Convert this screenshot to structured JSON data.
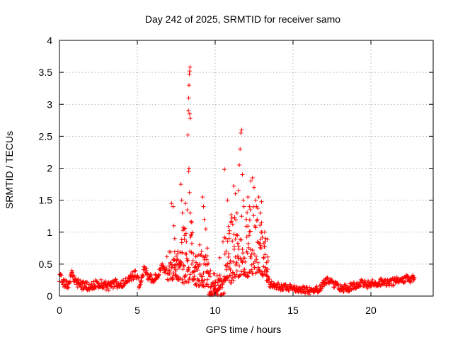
{
  "chart_data": {
    "type": "scatter",
    "title": "Day 242 of 2025, SRMTID for receiver samo",
    "xlabel": "GPS time / hours",
    "ylabel": "SRMTID / TECUs",
    "xlim": [
      0,
      24
    ],
    "ylim": [
      0,
      4
    ],
    "x_ticks": [
      0,
      5,
      10,
      15,
      20
    ],
    "y_ticks": [
      0,
      0.5,
      1,
      1.5,
      2,
      2.5,
      3,
      3.5,
      4
    ],
    "x_tick_labels": [
      "0",
      "5",
      "10",
      "15",
      "20"
    ],
    "y_tick_labels": [
      "0",
      "0.5",
      "1",
      "1.5",
      "2",
      "2.5",
      "3",
      "3.5",
      "4"
    ],
    "grid": true,
    "marker": "+",
    "series": [
      {
        "name": "SRMTID",
        "color": "#ff0000",
        "background_segments": [
          {
            "x": [
              0.0,
              0.3,
              0.6,
              0.8,
              1.0,
              1.3,
              1.6,
              2.0,
              2.4,
              2.8,
              3.2,
              3.6,
              4.0,
              4.3,
              4.6,
              4.9,
              5.1,
              5.3,
              5.5,
              5.7,
              6.0,
              6.3,
              6.6,
              6.9
            ],
            "y": [
              0.3,
              0.2,
              0.18,
              0.4,
              0.22,
              0.18,
              0.16,
              0.15,
              0.2,
              0.18,
              0.15,
              0.2,
              0.17,
              0.25,
              0.3,
              0.35,
              0.2,
              0.3,
              0.45,
              0.3,
              0.25,
              0.35,
              0.45,
              0.4
            ],
            "spread": 0.07
          },
          {
            "x": [
              13.3,
              13.5,
              13.8,
              14.1,
              14.4,
              14.8,
              15.2,
              15.6,
              16.0,
              16.4,
              16.8,
              17.0,
              17.3,
              17.6,
              17.9,
              18.2,
              18.6,
              19.0,
              19.4,
              19.8,
              20.2,
              20.6,
              21.0,
              21.4,
              21.8,
              22.2,
              22.6,
              22.8
            ],
            "y": [
              0.3,
              0.2,
              0.18,
              0.15,
              0.14,
              0.13,
              0.12,
              0.1,
              0.08,
              0.1,
              0.14,
              0.22,
              0.25,
              0.2,
              0.15,
              0.12,
              0.13,
              0.17,
              0.2,
              0.18,
              0.2,
              0.22,
              0.2,
              0.22,
              0.25,
              0.26,
              0.27,
              0.28
            ],
            "spread": 0.06
          }
        ],
        "disturbed_points": [
          {
            "x": 7.2,
            "y": 1.45
          },
          {
            "x": 7.3,
            "y": 1.4
          },
          {
            "x": 7.35,
            "y": 1.1
          },
          {
            "x": 7.4,
            "y": 0.9
          },
          {
            "x": 7.6,
            "y": 0.7
          },
          {
            "x": 7.8,
            "y": 1.75
          },
          {
            "x": 7.85,
            "y": 1.5
          },
          {
            "x": 7.9,
            "y": 1.3
          },
          {
            "x": 8.0,
            "y": 1.05
          },
          {
            "x": 8.05,
            "y": 0.95
          },
          {
            "x": 8.1,
            "y": 1.45
          },
          {
            "x": 8.2,
            "y": 1.35
          },
          {
            "x": 8.25,
            "y": 2.52
          },
          {
            "x": 8.28,
            "y": 2.9
          },
          {
            "x": 8.3,
            "y": 3.1
          },
          {
            "x": 8.32,
            "y": 3.3
          },
          {
            "x": 8.34,
            "y": 3.47
          },
          {
            "x": 8.36,
            "y": 3.52
          },
          {
            "x": 8.38,
            "y": 3.58
          },
          {
            "x": 8.4,
            "y": 2.78
          },
          {
            "x": 8.36,
            "y": 2.85
          },
          {
            "x": 8.3,
            "y": 1.95
          },
          {
            "x": 8.32,
            "y": 2.0
          },
          {
            "x": 8.35,
            "y": 1.62
          },
          {
            "x": 8.4,
            "y": 1.3
          },
          {
            "x": 8.5,
            "y": 0.5
          },
          {
            "x": 8.7,
            "y": 0.45
          },
          {
            "x": 9.0,
            "y": 0.8
          },
          {
            "x": 9.2,
            "y": 1.55
          },
          {
            "x": 9.25,
            "y": 1.4
          },
          {
            "x": 9.3,
            "y": 1.2
          },
          {
            "x": 9.4,
            "y": 1.05
          },
          {
            "x": 9.5,
            "y": 0.75
          },
          {
            "x": 9.7,
            "y": 0.4
          },
          {
            "x": 10.0,
            "y": 0.1
          },
          {
            "x": 10.3,
            "y": 0.6
          },
          {
            "x": 10.5,
            "y": 0.85
          },
          {
            "x": 10.6,
            "y": 1.98
          },
          {
            "x": 10.8,
            "y": 1.5
          },
          {
            "x": 10.9,
            "y": 0.9
          },
          {
            "x": 11.0,
            "y": 1.15
          },
          {
            "x": 11.2,
            "y": 1.72
          },
          {
            "x": 11.3,
            "y": 1.6
          },
          {
            "x": 11.4,
            "y": 1.3
          },
          {
            "x": 11.5,
            "y": 1.65
          },
          {
            "x": 11.55,
            "y": 2.05
          },
          {
            "x": 11.6,
            "y": 2.3
          },
          {
            "x": 11.65,
            "y": 2.55
          },
          {
            "x": 11.7,
            "y": 2.6
          },
          {
            "x": 11.75,
            "y": 1.9
          },
          {
            "x": 11.8,
            "y": 1.5
          },
          {
            "x": 12.0,
            "y": 1.2
          },
          {
            "x": 12.1,
            "y": 1.55
          },
          {
            "x": 12.2,
            "y": 1.4
          },
          {
            "x": 12.3,
            "y": 1.8
          },
          {
            "x": 12.4,
            "y": 1.85
          },
          {
            "x": 12.5,
            "y": 1.7
          },
          {
            "x": 12.6,
            "y": 1.5
          },
          {
            "x": 12.7,
            "y": 1.2
          },
          {
            "x": 12.8,
            "y": 1.55
          },
          {
            "x": 12.9,
            "y": 1.3
          },
          {
            "x": 13.0,
            "y": 1.0
          },
          {
            "x": 13.2,
            "y": 0.85
          },
          {
            "x": 13.4,
            "y": 0.55
          }
        ],
        "disturbed_envelope": [
          {
            "x0": 6.9,
            "x1": 7.8,
            "lo": 0.25,
            "hi": 0.7
          },
          {
            "x0": 7.8,
            "x1": 8.6,
            "lo": 0.2,
            "hi": 1.2
          },
          {
            "x0": 8.6,
            "x1": 9.6,
            "lo": 0.15,
            "hi": 0.7
          },
          {
            "x0": 9.6,
            "x1": 10.6,
            "lo": 0.02,
            "hi": 0.35
          },
          {
            "x0": 10.6,
            "x1": 11.2,
            "lo": 0.2,
            "hi": 1.3
          },
          {
            "x0": 11.2,
            "x1": 12.2,
            "lo": 0.3,
            "hi": 1.45
          },
          {
            "x0": 12.2,
            "x1": 13.0,
            "lo": 0.35,
            "hi": 1.5
          },
          {
            "x0": 13.0,
            "x1": 13.4,
            "lo": 0.3,
            "hi": 1.0
          }
        ]
      }
    ]
  }
}
